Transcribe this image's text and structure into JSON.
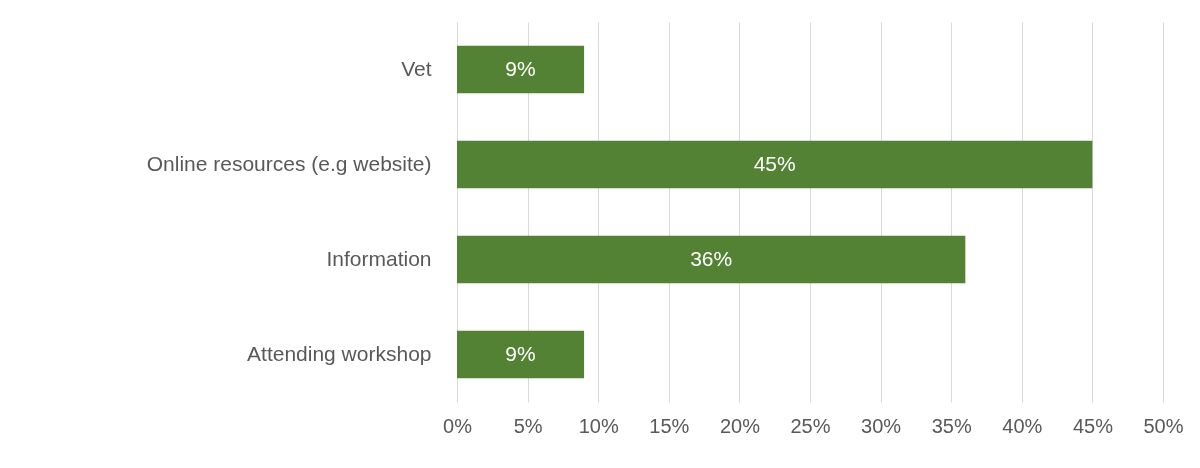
{
  "chart_data": {
    "type": "bar",
    "orientation": "horizontal",
    "categories": [
      "Vet",
      "Online resources (e.g website)",
      "Information",
      "Attending workshop"
    ],
    "values": [
      9,
      45,
      36,
      9
    ],
    "value_labels": [
      "9%",
      "45%",
      "36%",
      "9%"
    ],
    "color": "#548235",
    "xlim": [
      0,
      50
    ],
    "xticks": [
      {
        "value": 0,
        "label": "0%"
      },
      {
        "value": 5,
        "label": "5%"
      },
      {
        "value": 10,
        "label": "10%"
      },
      {
        "value": 15,
        "label": "15%"
      },
      {
        "value": 20,
        "label": "20%"
      },
      {
        "value": 25,
        "label": "25%"
      },
      {
        "value": 30,
        "label": "30%"
      },
      {
        "value": 35,
        "label": "35%"
      },
      {
        "value": 40,
        "label": "40%"
      },
      {
        "value": 45,
        "label": "45%"
      },
      {
        "value": 50,
        "label": "50%"
      }
    ],
    "grid": "x"
  }
}
